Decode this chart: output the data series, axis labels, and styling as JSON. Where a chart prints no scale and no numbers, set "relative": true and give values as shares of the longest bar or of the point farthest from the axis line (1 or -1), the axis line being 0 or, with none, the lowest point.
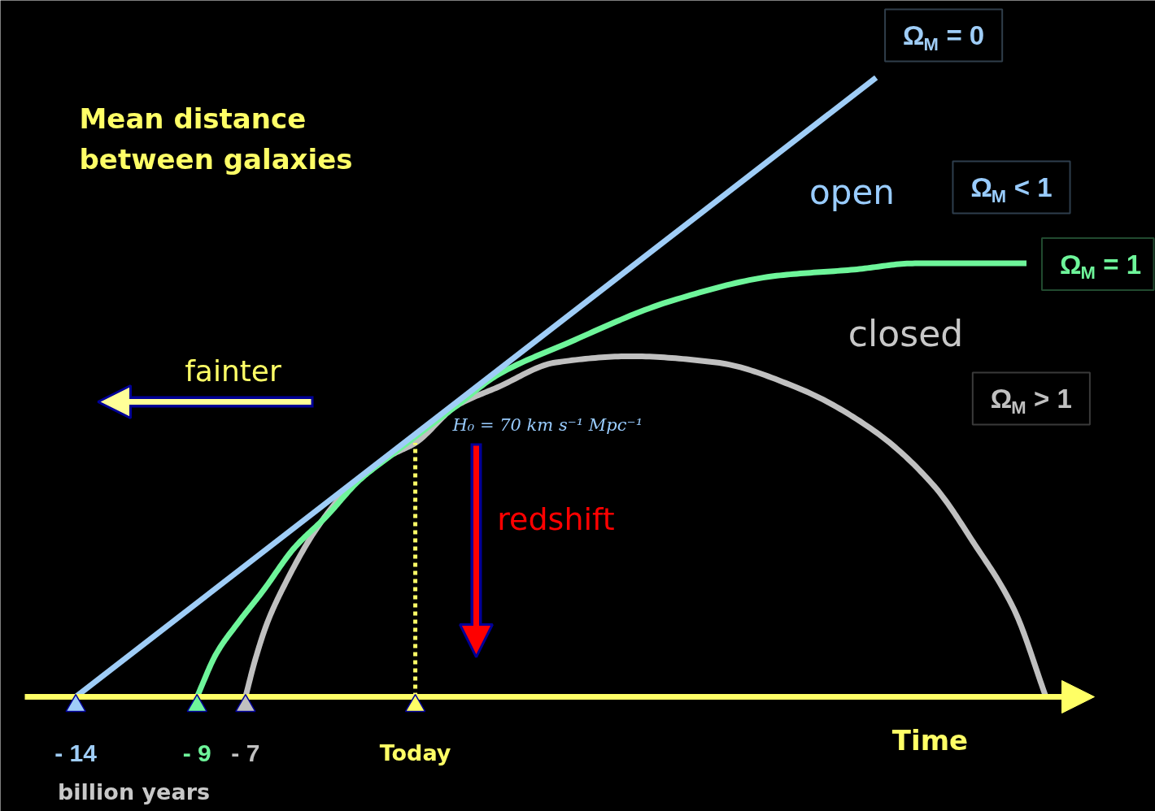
{
  "chart_data": {
    "type": "line",
    "relative": true,
    "xlabel": "Time",
    "ylabel": "Mean distance between galaxies",
    "xlim": [
      -16,
      28
    ],
    "xticks": [
      {
        "value": -14,
        "label": "- 14"
      },
      {
        "value": -9,
        "label": "- 9"
      },
      {
        "value": -7,
        "label": "- 7"
      },
      {
        "value": 0,
        "label": "Today"
      }
    ],
    "line_style": "solid",
    "series": [
      {
        "name": "Ω$_{M}$ = 0",
        "color": "#9fcdf7",
        "x": [
          -14,
          19
        ],
        "values": [
          0,
          1
        ]
      },
      {
        "name": "Ω$_{M}$ = 1",
        "color": "#6ef59a",
        "x": [
          -9,
          -8.2,
          -7.3,
          -6.3,
          -5,
          -3.7,
          -2.3,
          -1,
          0,
          1.7,
          3.4,
          6.2,
          10.6,
          14.9,
          18.1,
          20.6,
          25.2
        ],
        "values": [
          0,
          0.07,
          0.12,
          0.17,
          0.24,
          0.29,
          0.35,
          0.39,
          0.42,
          0.47,
          0.52,
          0.57,
          0.64,
          0.68,
          0.69,
          0.7,
          0.7
        ]
      },
      {
        "name": "Ω$_{M}$ > 1",
        "color": "#c0c0c0",
        "x": [
          -7,
          -6.6,
          -6.1,
          -5.4,
          -4.1,
          -2.9,
          -1,
          0,
          1.7,
          3.4,
          5.8,
          8.9,
          12.4,
          15.7,
          18.9,
          21.4,
          23,
          24.7,
          26
        ],
        "values": [
          0,
          0.06,
          0.12,
          0.18,
          0.27,
          0.33,
          0.39,
          0.41,
          0.47,
          0.5,
          0.54,
          0.55,
          0.54,
          0.5,
          0.43,
          0.34,
          0.25,
          0.14,
          0
        ]
      }
    ],
    "ref_lines": [
      {
        "axis": "x",
        "value": 0,
        "color": "#ffff66",
        "line_style": "dotted"
      }
    ],
    "annotations": [
      "open",
      "Ω$_{M}$ < 1",
      "closed",
      "H₀ = 70 km s⁻¹ Mpc⁻¹",
      "fainter",
      "redshift",
      "billion years"
    ]
  }
}
